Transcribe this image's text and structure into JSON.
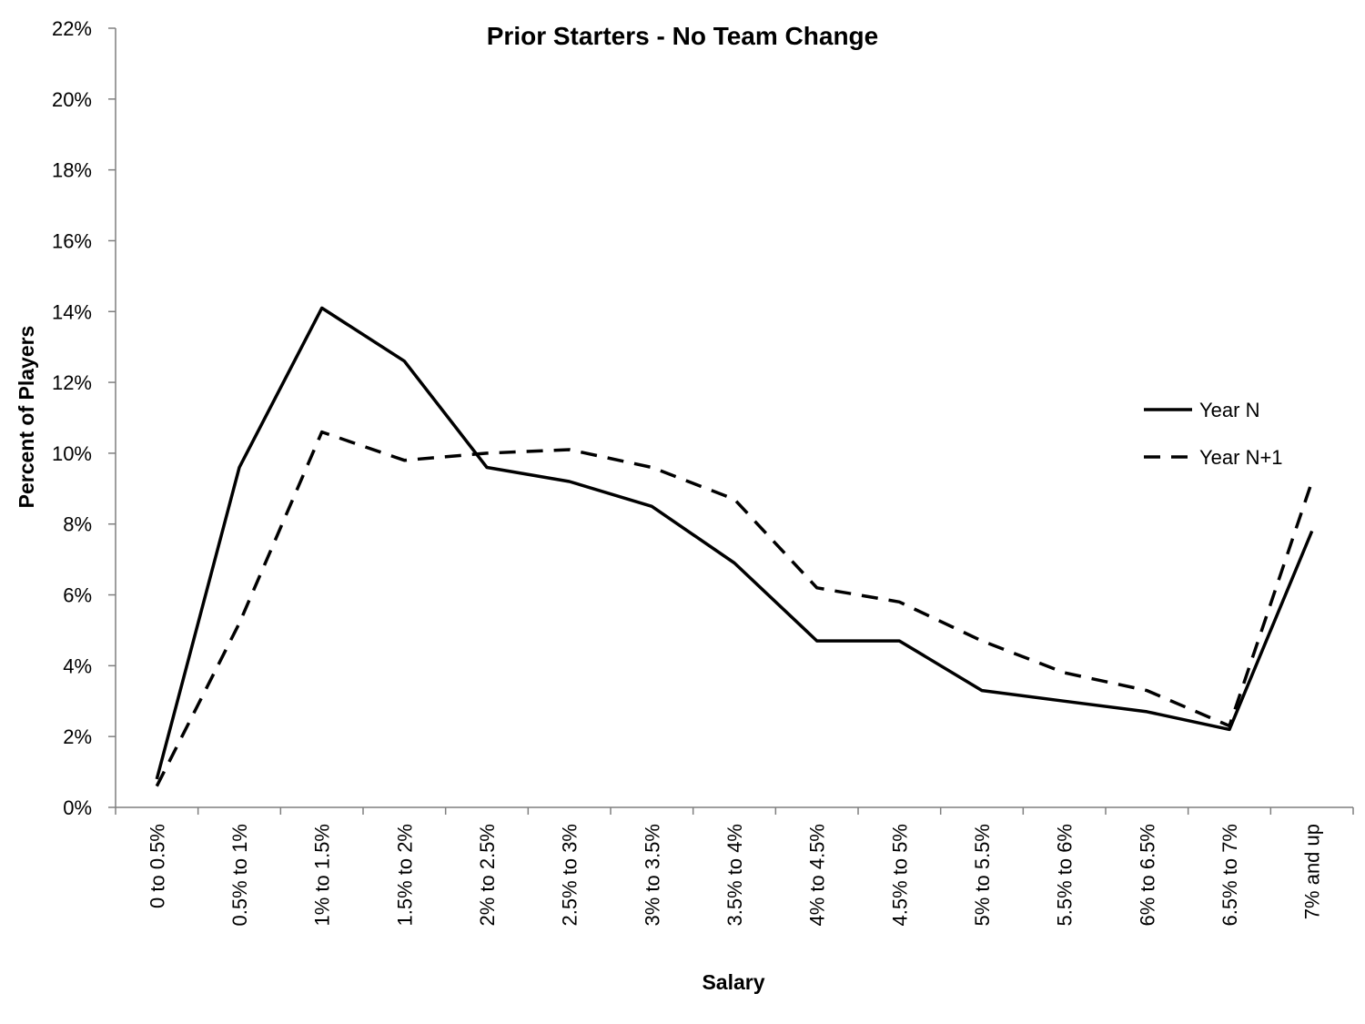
{
  "chart_data": {
    "type": "line",
    "title": "Prior Starters - No Team Change",
    "xlabel": "Salary",
    "ylabel": "Percent of Players",
    "categories": [
      "0 to 0.5%",
      "0.5% to 1%",
      "1% to 1.5%",
      "1.5% to 2%",
      "2% to 2.5%",
      "2.5% to 3%",
      "3% to 3.5%",
      "3.5% to 4%",
      "4% to 4.5%",
      "4.5% to 5%",
      "5% to 5.5%",
      "5.5% to 6%",
      "6% to 6.5%",
      "6.5% to 7%",
      "7% and up"
    ],
    "ylim": [
      0,
      22
    ],
    "yticks": [
      0,
      2,
      4,
      6,
      8,
      10,
      12,
      14,
      16,
      18,
      20,
      22
    ],
    "ytick_labels": [
      "0%",
      "2%",
      "4%",
      "6%",
      "8%",
      "10%",
      "12%",
      "14%",
      "16%",
      "18%",
      "20%",
      "22%"
    ],
    "grid": false,
    "legend_position": "right",
    "series": [
      {
        "name": "Year N",
        "style": "solid",
        "color": "#000000",
        "values": [
          0.8,
          9.6,
          14.1,
          12.6,
          9.6,
          9.2,
          8.5,
          6.9,
          4.7,
          4.7,
          3.3,
          3.0,
          2.7,
          2.2,
          7.8
        ]
      },
      {
        "name": "Year N+1",
        "style": "dashed",
        "color": "#000000",
        "values": [
          0.6,
          5.2,
          10.6,
          9.8,
          10.0,
          10.1,
          9.6,
          8.7,
          6.2,
          5.8,
          4.7,
          3.8,
          3.3,
          2.3,
          9.2
        ]
      }
    ]
  }
}
